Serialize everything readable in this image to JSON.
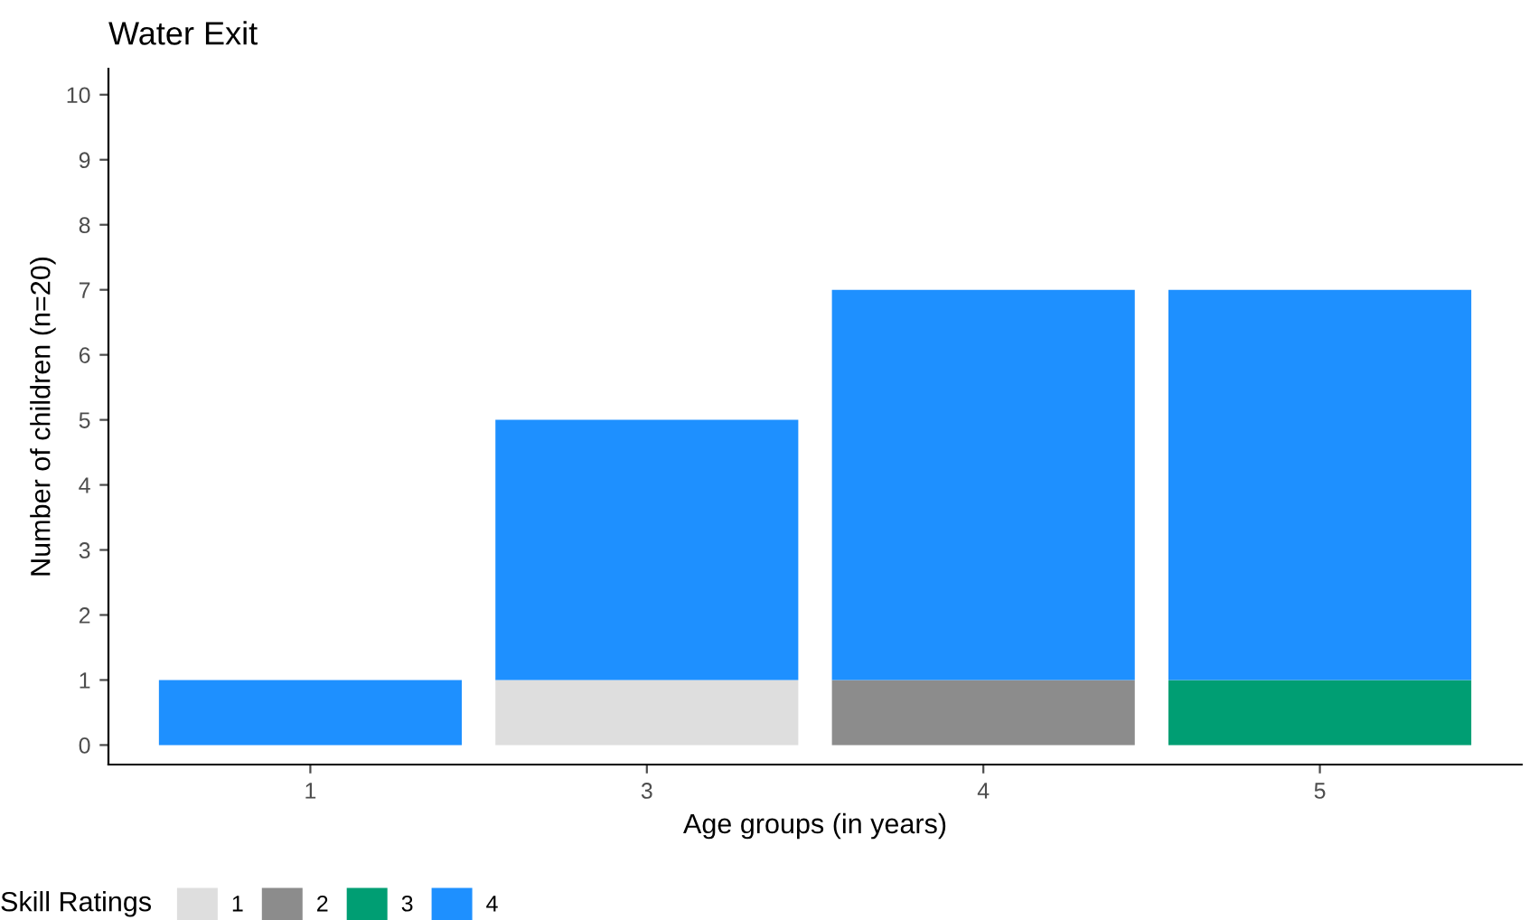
{
  "chart_data": {
    "type": "bar",
    "title": "Water Exit",
    "xlabel": "Age groups (in years)",
    "ylabel": "Number of children (n=20)",
    "categories": [
      "1",
      "3",
      "4",
      "5"
    ],
    "stacked": true,
    "series": [
      {
        "name": "1",
        "color": "#dedede",
        "values": [
          null,
          1,
          null,
          null
        ]
      },
      {
        "name": "2",
        "color": "#8c8c8c",
        "values": [
          null,
          null,
          1,
          null
        ]
      },
      {
        "name": "3",
        "color": "#009e73",
        "values": [
          null,
          null,
          null,
          1
        ]
      },
      {
        "name": "4",
        "color": "#1e90ff",
        "values": [
          1,
          4,
          6,
          6
        ]
      }
    ],
    "ylim": [
      -0.3,
      10.4
    ],
    "yticks": [
      0,
      1,
      2,
      3,
      4,
      5,
      6,
      7,
      8,
      9,
      10
    ],
    "legend": "bottom",
    "legend_title": "Skill Ratings"
  }
}
